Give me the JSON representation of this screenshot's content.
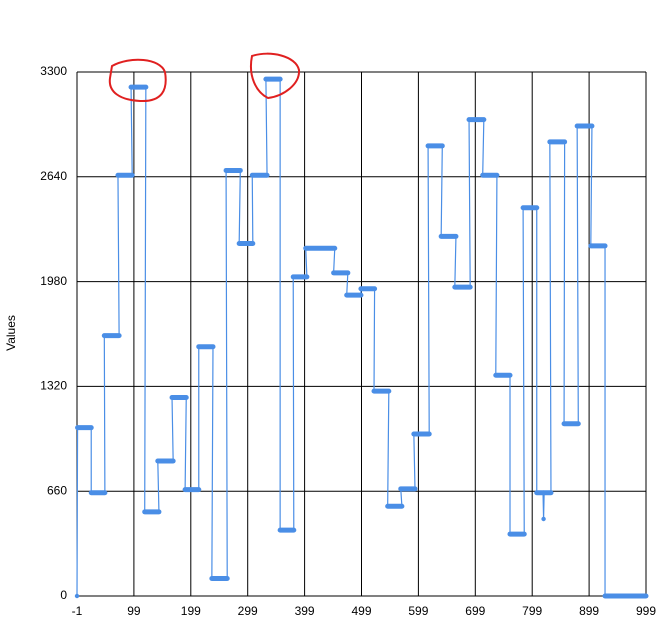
{
  "chart_data": {
    "type": "line",
    "y_label": "Values",
    "x": [
      -1,
      0,
      24,
      24,
      48,
      47,
      73,
      71,
      96,
      94,
      120,
      118,
      143,
      141,
      168,
      166,
      191,
      189,
      213,
      213,
      238,
      236,
      263,
      261,
      286,
      284,
      308,
      307,
      333,
      331,
      356,
      356,
      380,
      379,
      403,
      401,
      452,
      450,
      475,
      473,
      498,
      498,
      522,
      521,
      547,
      545,
      570,
      568,
      593,
      591,
      618,
      616,
      641,
      639,
      665,
      663,
      690,
      688,
      714,
      712,
      737,
      735,
      760,
      760,
      785,
      783,
      807,
      807,
      818,
      819,
      820,
      832,
      830,
      856,
      855,
      880,
      878,
      904,
      902,
      927,
      927,
      999
    ],
    "series": [
      {
        "color": "#4a8ee6",
        "values": [
          0,
          1060,
          1060,
          650,
          650,
          1640,
          1640,
          2650,
          2650,
          3205,
          3205,
          530,
          530,
          850,
          850,
          1250,
          1250,
          670,
          670,
          1570,
          1570,
          110,
          110,
          2680,
          2680,
          2220,
          2220,
          2650,
          2650,
          3255,
          3255,
          415,
          415,
          2010,
          2010,
          2190,
          2190,
          2035,
          2035,
          1895,
          1895,
          1935,
          1935,
          1290,
          1290,
          565,
          565,
          675,
          675,
          1020,
          1020,
          2835,
          2835,
          2265,
          2265,
          1945,
          1945,
          3000,
          3000,
          2650,
          2650,
          1390,
          1390,
          390,
          390,
          2445,
          2445,
          650,
          650,
          485,
          650,
          650,
          2860,
          2860,
          1085,
          1085,
          2960,
          2960,
          2205,
          2205,
          0,
          0
        ]
      }
    ],
    "xlim": [
      -1,
      999
    ],
    "xticks": [
      -1,
      99,
      199,
      299,
      399,
      499,
      599,
      699,
      799,
      899,
      999
    ],
    "ylim": [
      0,
      3300
    ],
    "yticks": [
      0,
      660,
      1320,
      1980,
      2640,
      3300
    ],
    "grid": true
  }
}
